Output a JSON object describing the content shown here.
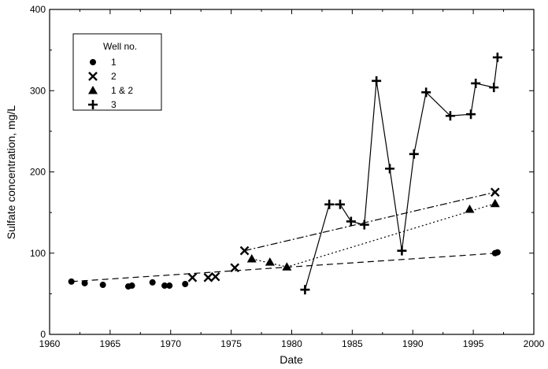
{
  "chart_data": {
    "type": "scatter",
    "title": "",
    "xlabel": "Date",
    "ylabel": "Sulfate concentration, mg/L",
    "xlim": [
      1960,
      2000
    ],
    "ylim": [
      0,
      400
    ],
    "xticks": [
      1960,
      1965,
      1970,
      1975,
      1980,
      1985,
      1990,
      1995,
      2000
    ],
    "yticks": [
      0,
      100,
      200,
      300,
      400
    ],
    "grid": false,
    "legend": {
      "title": "Well no.",
      "placement": "top-left",
      "entries": [
        "1",
        "2",
        "1 & 2",
        "3"
      ]
    },
    "series": [
      {
        "name": "1",
        "marker": "circle",
        "x": [
          1961.8,
          1962.9,
          1964.4,
          1966.5,
          1966.8,
          1968.5,
          1969.5,
          1969.9,
          1971.2,
          1996.8,
          1997.0
        ],
        "y": [
          65,
          63,
          61,
          59,
          60,
          64,
          60,
          60,
          62,
          100,
          101
        ]
      },
      {
        "name": "2",
        "marker": "x",
        "x": [
          1971.8,
          1973.1,
          1973.7,
          1975.3,
          1976.1,
          1996.8
        ],
        "y": [
          70,
          70,
          71,
          82,
          103,
          175
        ]
      },
      {
        "name": "1 & 2",
        "marker": "triangle",
        "x": [
          1976.7,
          1978.2,
          1979.6,
          1994.7,
          1996.8
        ],
        "y": [
          93,
          89,
          83,
          154,
          161
        ]
      },
      {
        "name": "3",
        "marker": "plus",
        "x": [
          1981.1,
          1983.1,
          1984.0,
          1984.9,
          1986.0,
          1987.0,
          1988.1,
          1989.1,
          1990.1,
          1991.1,
          1993.1,
          1994.8,
          1995.2,
          1996.7,
          1997.0
        ],
        "y": [
          55,
          160,
          160,
          139,
          135,
          312,
          204,
          103,
          222,
          298,
          269,
          271,
          309,
          304,
          341
        ]
      }
    ],
    "trend_lines": [
      {
        "style": "dashed",
        "x": [
          1961.8,
          1997.0
        ],
        "y": [
          65,
          100
        ]
      },
      {
        "style": "dash-dot",
        "x": [
          1976.1,
          1996.8
        ],
        "y": [
          103,
          175
        ]
      },
      {
        "style": "dotted",
        "x": [
          1976.7,
          1979.6,
          1996.8
        ],
        "y": [
          93,
          83,
          161
        ]
      },
      {
        "style": "solid",
        "x": [
          1981.1,
          1983.1,
          1984.0,
          1984.9,
          1986.0,
          1987.0,
          1988.1,
          1989.1,
          1990.1,
          1991.1,
          1993.1,
          1994.8,
          1995.2,
          1996.7,
          1997.0
        ],
        "y": [
          55,
          160,
          160,
          139,
          135,
          312,
          204,
          103,
          222,
          298,
          269,
          271,
          309,
          304,
          341
        ]
      }
    ]
  }
}
